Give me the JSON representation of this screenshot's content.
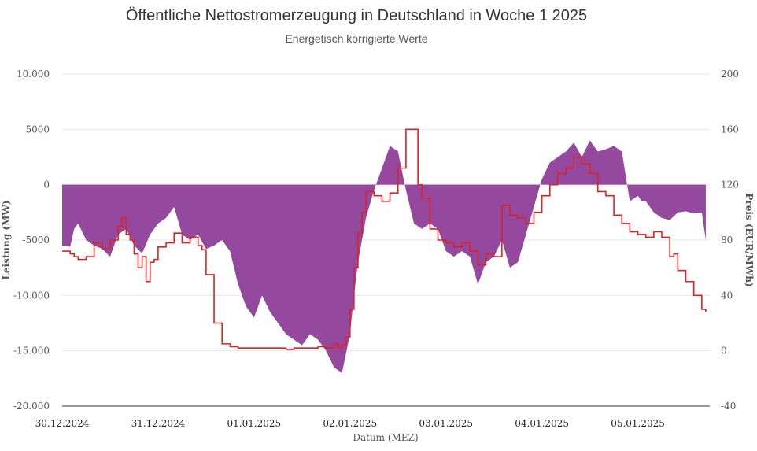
{
  "chart_data": {
    "type": "area",
    "title": "Öffentliche Nettostromerzeugung in Deutschland in Woche 1 2025",
    "subtitle": "Energetisch korrigierte Werte",
    "xlabel": "Datum (MEZ)",
    "ylabel_left": "Leistung (MW)",
    "ylabel_right": "Preis (EUR/MWh)",
    "x_range": [
      0,
      162
    ],
    "ylim_left": [
      -20000,
      10000
    ],
    "ylim_right": [
      -40,
      200
    ],
    "yticks_left": [
      {
        "value": -20000,
        "label": "-20.000"
      },
      {
        "value": -15000,
        "label": "-15.000"
      },
      {
        "value": -10000,
        "label": "-10.000"
      },
      {
        "value": -5000,
        "label": "-5000"
      },
      {
        "value": 0,
        "label": "0"
      },
      {
        "value": 5000,
        "label": "5000"
      },
      {
        "value": 10000,
        "label": "10.000"
      }
    ],
    "yticks_right": [
      {
        "value": -40,
        "label": "-40"
      },
      {
        "value": 0,
        "label": "0"
      },
      {
        "value": 40,
        "label": "40"
      },
      {
        "value": 80,
        "label": "80"
      },
      {
        "value": 120,
        "label": "120"
      },
      {
        "value": 160,
        "label": "160"
      },
      {
        "value": 200,
        "label": "200"
      }
    ],
    "xticks": [
      {
        "value": 0,
        "label": "30.12.2024"
      },
      {
        "value": 24,
        "label": "31.12.2024"
      },
      {
        "value": 48,
        "label": "01.01.2025"
      },
      {
        "value": 72,
        "label": "02.01.2025"
      },
      {
        "value": 96,
        "label": "03.01.2025"
      },
      {
        "value": 120,
        "label": "04.01.2025"
      },
      {
        "value": 144,
        "label": "05.01.2025"
      }
    ],
    "grid": true,
    "series": [
      {
        "kind": "area",
        "axis": "left",
        "color": "#8b3a96",
        "x": [
          0,
          2,
          3,
          4,
          6,
          8,
          10,
          12,
          14,
          16,
          18,
          20,
          22,
          24,
          26,
          28,
          30,
          32,
          34,
          36,
          38,
          40,
          42,
          44,
          46,
          48,
          50,
          52,
          54,
          56,
          58,
          60,
          62,
          64,
          66,
          68,
          70,
          72,
          73,
          74,
          76,
          78,
          80,
          82,
          84,
          86,
          88,
          90,
          92,
          94,
          96,
          98,
          100,
          102,
          104,
          106,
          108,
          110,
          112,
          114,
          116,
          118,
          120,
          122,
          124,
          126,
          128,
          130,
          132,
          134,
          136,
          138,
          140,
          142,
          144,
          145,
          146,
          148,
          150,
          152,
          154,
          156,
          158,
          160,
          161
        ],
        "values": [
          -5500,
          -5600,
          -4000,
          -3500,
          -5000,
          -5500,
          -5800,
          -6500,
          -4500,
          -4000,
          -5500,
          -6200,
          -4500,
          -3500,
          -3000,
          -2000,
          -4500,
          -5000,
          -4500,
          -5800,
          -5500,
          -5000,
          -6000,
          -9000,
          -11000,
          -12000,
          -10000,
          -11500,
          -12500,
          -13500,
          -14000,
          -14500,
          -13500,
          -14000,
          -15000,
          -16500,
          -17000,
          -13500,
          -10000,
          -7000,
          -3000,
          -500,
          1500,
          3500,
          3000,
          -500,
          -3500,
          -4000,
          -3500,
          -4000,
          -6000,
          -6500,
          -6000,
          -6500,
          -9000,
          -7000,
          -6500,
          -5000,
          -7500,
          -7000,
          -4500,
          -2000,
          500,
          2000,
          2500,
          3000,
          3800,
          2500,
          4000,
          3000,
          3200,
          3500,
          3000,
          -1500,
          -1000,
          -1500,
          -1500,
          -2500,
          -3000,
          -3200,
          -2500,
          -2400,
          -2600,
          -2500,
          -5000
        ]
      },
      {
        "kind": "line",
        "axis": "right",
        "color": "#dd2222",
        "x": [
          0,
          2,
          3,
          4,
          6,
          8,
          10,
          12,
          14,
          15,
          16,
          17,
          18,
          19,
          20,
          21,
          22,
          23,
          24,
          26,
          28,
          30,
          32,
          34,
          35,
          36,
          38,
          40,
          42,
          44,
          46,
          48,
          50,
          52,
          54,
          56,
          58,
          60,
          62,
          64,
          66,
          68,
          69,
          70,
          71,
          72,
          73,
          74,
          75,
          76,
          78,
          80,
          82,
          84,
          86,
          88,
          89,
          90,
          92,
          94,
          96,
          98,
          100,
          102,
          104,
          106,
          108,
          110,
          112,
          114,
          116,
          118,
          120,
          122,
          124,
          126,
          128,
          130,
          132,
          134,
          136,
          138,
          140,
          142,
          144,
          146,
          148,
          150,
          152,
          153,
          154,
          156,
          158,
          160,
          161
        ],
        "values": [
          72,
          70,
          68,
          66,
          68,
          78,
          74,
          80,
          90,
          96,
          84,
          80,
          70,
          60,
          68,
          50,
          64,
          66,
          75,
          78,
          85,
          78,
          82,
          76,
          73,
          55,
          20,
          5,
          3,
          2,
          2,
          2,
          2,
          2,
          2,
          1,
          2,
          2,
          2,
          3,
          2,
          5,
          2,
          4,
          10,
          30,
          60,
          85,
          100,
          115,
          112,
          108,
          114,
          132,
          160,
          160,
          120,
          110,
          88,
          80,
          78,
          75,
          78,
          72,
          62,
          70,
          68,
          105,
          98,
          96,
          92,
          100,
          112,
          120,
          128,
          132,
          140,
          135,
          128,
          115,
          112,
          98,
          92,
          86,
          84,
          82,
          86,
          82,
          68,
          70,
          58,
          50,
          40,
          30,
          28
        ]
      }
    ]
  }
}
